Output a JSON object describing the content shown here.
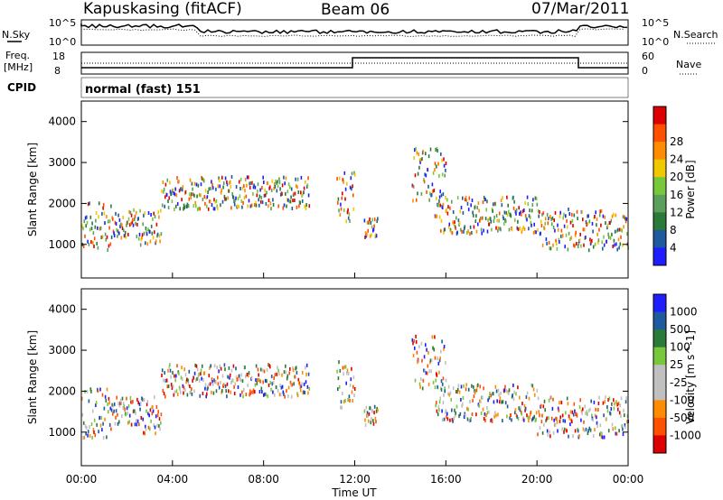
{
  "header": {
    "station": "Kapuskasing (fitACF)",
    "beam": "Beam 06",
    "date": "07/Mar/2011"
  },
  "summary": {
    "nsky_label": "N.Sky",
    "nsearch_label": "N.Search",
    "freq_label_1": "Freq.",
    "freq_label_2": "[MHz]",
    "nave_label": "Nave",
    "cpid_label": "CPID",
    "cpid_text": "normal (fast) 151",
    "nsky_ticks": [
      "10^5",
      "10^0"
    ],
    "nsearch_ticks": [
      "10^5",
      "10^0"
    ],
    "freq_ticks": [
      "18",
      "8"
    ],
    "nave_ticks": [
      "60",
      "0"
    ]
  },
  "time_axis": {
    "label": "Time UT",
    "ticks": [
      "00:00",
      "04:00",
      "08:00",
      "12:00",
      "16:00",
      "20:00",
      "00:00"
    ]
  },
  "colors": {
    "power": [
      "#1e1eff",
      "#1e5aa0",
      "#2a7a3a",
      "#5aa05a",
      "#78c83c",
      "#f0c800",
      "#ff8c00",
      "#ff5000",
      "#dc0000"
    ],
    "velocity": [
      "#1e1eff",
      "#1e5aa0",
      "#2a7a3a",
      "#78c83c",
      "#c0c0c0",
      "#c0c0c0",
      "#ff8c00",
      "#ff5000",
      "#dc0000"
    ],
    "frame": "#000000"
  },
  "chart_data": [
    {
      "type": "heatmap",
      "name": "power",
      "ylabel": "Slant Range [km]",
      "ylim": [
        180,
        4500
      ],
      "yticks": [
        "1000",
        "2000",
        "3000",
        "4000"
      ],
      "xlim_hours": [
        0,
        24
      ],
      "colorbar_label": "Power [dB]",
      "colorbar_ticks": [
        "4",
        "8",
        "12",
        "16",
        "20",
        "24",
        "28"
      ],
      "clim": [
        0,
        30
      ],
      "echo_bands": [
        {
          "t0": 0.0,
          "t1": 1.3,
          "r0": 900,
          "r1": 2100
        },
        {
          "t0": 1.3,
          "t1": 2.5,
          "r0": 1200,
          "r1": 1900
        },
        {
          "t0": 2.5,
          "t1": 3.5,
          "r0": 1000,
          "r1": 1900
        },
        {
          "t0": 3.5,
          "t1": 10.0,
          "r0": 1900,
          "r1": 2700
        },
        {
          "t0": 11.2,
          "t1": 12.0,
          "r0": 1600,
          "r1": 2800
        },
        {
          "t0": 12.4,
          "t1": 13.0,
          "r0": 1200,
          "r1": 1700
        },
        {
          "t0": 14.5,
          "t1": 16.0,
          "r0": 2100,
          "r1": 3400
        },
        {
          "t0": 15.5,
          "t1": 20.0,
          "r0": 1300,
          "r1": 2200
        },
        {
          "t0": 20.0,
          "t1": 24.0,
          "r0": 900,
          "r1": 1900
        }
      ]
    },
    {
      "type": "heatmap",
      "name": "velocity",
      "ylabel": "Slant Range [km]",
      "ylim": [
        180,
        4500
      ],
      "yticks": [
        "1000",
        "2000",
        "3000",
        "4000"
      ],
      "xlim_hours": [
        0,
        24
      ],
      "colorbar_label": "Velocity [m s^-1]",
      "colorbar_ticks": [
        "1000",
        "500",
        "100",
        "25",
        "-25",
        "-100",
        "-500",
        "-1000"
      ],
      "echo_bands": [
        {
          "t0": 0.0,
          "t1": 1.3,
          "r0": 900,
          "r1": 2100
        },
        {
          "t0": 1.3,
          "t1": 2.5,
          "r0": 1200,
          "r1": 1900
        },
        {
          "t0": 2.5,
          "t1": 3.5,
          "r0": 1000,
          "r1": 1900
        },
        {
          "t0": 3.5,
          "t1": 10.0,
          "r0": 1900,
          "r1": 2700
        },
        {
          "t0": 11.2,
          "t1": 12.0,
          "r0": 1600,
          "r1": 2800
        },
        {
          "t0": 12.4,
          "t1": 13.0,
          "r0": 1200,
          "r1": 1700
        },
        {
          "t0": 14.5,
          "t1": 16.0,
          "r0": 2100,
          "r1": 3400
        },
        {
          "t0": 15.5,
          "t1": 20.0,
          "r0": 1300,
          "r1": 2200
        },
        {
          "t0": 20.0,
          "t1": 24.0,
          "r0": 900,
          "r1": 1900
        }
      ]
    }
  ]
}
